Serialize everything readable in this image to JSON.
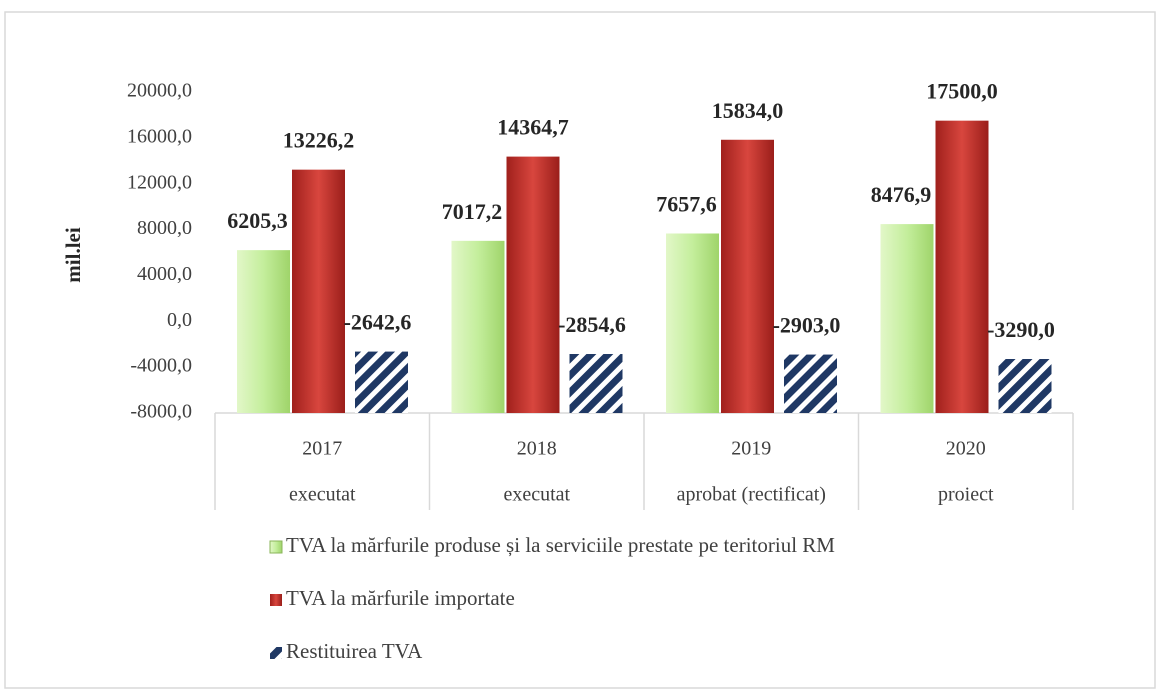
{
  "chart_data": {
    "type": "bar",
    "y_label": "mil.lei",
    "categories": [
      "2017",
      "2018",
      "2019",
      "2020"
    ],
    "category_sublabels": [
      "executat",
      "executat",
      "aprobat (rectificat)",
      "proiect"
    ],
    "series": [
      {
        "name": "TVA la mărfurile produse și la serviciile prestate pe teritoriul RM",
        "color": "#b5e38a",
        "values": [
          6205.3,
          7017.2,
          7657.6,
          8476.9
        ],
        "value_labels": [
          "6205,3",
          "7017,2",
          "7657,6",
          "8476,9"
        ]
      },
      {
        "name": "TVA la mărfurile importate",
        "color": "#c0302a",
        "values": [
          13226.2,
          14364.7,
          15834.0,
          17500.0
        ],
        "value_labels": [
          "13226,2",
          "14364,7",
          "15834,0",
          "17500,0"
        ]
      },
      {
        "name": "Restituirea TVA",
        "color": "#1f3864",
        "values": [
          -2642.6,
          -2854.6,
          -2903.0,
          -3290.0
        ],
        "value_labels": [
          "-2642,6",
          "-2854,6",
          "-2903,0",
          "-3290,0"
        ]
      }
    ],
    "ylim": [
      -8000,
      20000
    ],
    "yticks": [
      {
        "value": -8000,
        "label": "-8000,0"
      },
      {
        "value": -4000,
        "label": "-4000,0"
      },
      {
        "value": 0,
        "label": "0,0"
      },
      {
        "value": 4000,
        "label": "4000,0"
      },
      {
        "value": 8000,
        "label": "8000,0"
      },
      {
        "value": 12000,
        "label": "12000,0"
      },
      {
        "value": 16000,
        "label": "16000,0"
      },
      {
        "value": 20000,
        "label": "20000,0"
      }
    ]
  }
}
